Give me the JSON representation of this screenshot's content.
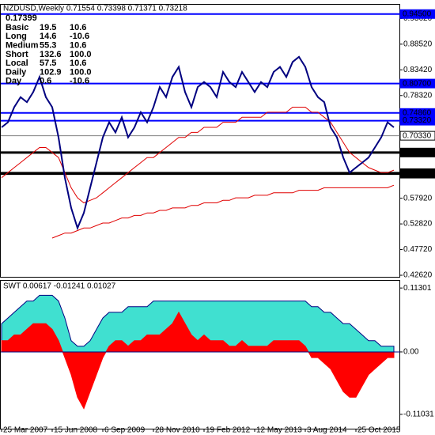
{
  "chart_data": [
    {
      "type": "line",
      "title": "NZDUSD,Weekly  0.71554 0.73398 0.71371 0.73218",
      "info": {
        "value": "0.17399",
        "rows": [
          [
            "Basic",
            "19.5",
            "10.6"
          ],
          [
            "Long",
            "14.6",
            "-10.6"
          ],
          [
            "Medium",
            "55.3",
            "10.6"
          ],
          [
            "Short",
            "132.6",
            "100.0"
          ],
          [
            "Local",
            "57.5",
            "10.6"
          ],
          [
            "Daily",
            "102.9",
            "100.0"
          ],
          [
            "Day",
            "0.6",
            "-10.6"
          ]
        ]
      },
      "categories": [
        "25 Mar 2007",
        null,
        null,
        null,
        null,
        null,
        null,
        null,
        "15 Jun 2008",
        null,
        null,
        null,
        null,
        null,
        null,
        null,
        "6 Sep 2009",
        null,
        null,
        null,
        null,
        null,
        null,
        null,
        "28 Nov 2010",
        null,
        null,
        null,
        null,
        null,
        null,
        null,
        "19 Feb 2012",
        null,
        null,
        null,
        null,
        null,
        null,
        null,
        "12 May 2013",
        null,
        null,
        null,
        null,
        null,
        null,
        null,
        "3 Aug 2014",
        null,
        null,
        null,
        null,
        null,
        null,
        null,
        "25 Oct 2015",
        null,
        null,
        null,
        null,
        null,
        null
      ],
      "series": [
        {
          "color": "#000080",
          "values": [
            0.72,
            0.73,
            0.76,
            0.78,
            0.77,
            0.79,
            0.82,
            0.78,
            0.76,
            0.7,
            0.62,
            0.56,
            0.52,
            0.55,
            0.6,
            0.65,
            0.7,
            0.73,
            0.71,
            0.74,
            0.7,
            0.72,
            0.75,
            0.73,
            0.76,
            0.8,
            0.78,
            0.82,
            0.84,
            0.79,
            0.76,
            0.8,
            0.81,
            0.8,
            0.78,
            0.83,
            0.81,
            0.8,
            0.83,
            0.81,
            0.79,
            0.81,
            0.8,
            0.83,
            0.84,
            0.82,
            0.85,
            0.86,
            0.84,
            0.8,
            0.78,
            0.77,
            0.72,
            0.7,
            0.66,
            0.63,
            0.64,
            0.65,
            0.66,
            0.68,
            0.7,
            0.73,
            0.72
          ]
        },
        {
          "color": "#e00000",
          "values": [
            0.62,
            0.63,
            0.64,
            0.65,
            0.66,
            0.67,
            0.68,
            0.68,
            0.67,
            0.66,
            0.63,
            0.6,
            0.58,
            0.57,
            0.575,
            0.58,
            0.59,
            0.6,
            0.61,
            0.62,
            0.63,
            0.64,
            0.65,
            0.66,
            0.66,
            0.67,
            0.68,
            0.69,
            0.7,
            0.7,
            0.71,
            0.71,
            0.72,
            0.72,
            0.72,
            0.73,
            0.73,
            0.73,
            0.74,
            0.74,
            0.74,
            0.74,
            0.75,
            0.75,
            0.75,
            0.75,
            0.76,
            0.76,
            0.76,
            0.75,
            0.75,
            0.74,
            0.73,
            0.71,
            0.69,
            0.67,
            0.66,
            0.65,
            0.64,
            0.635,
            0.63,
            0.63,
            0.635
          ]
        },
        {
          "color": "#e00000",
          "values": [
            null,
            null,
            null,
            null,
            null,
            null,
            null,
            null,
            0.5,
            0.505,
            0.51,
            0.51,
            0.515,
            0.52,
            0.52,
            0.525,
            0.53,
            0.53,
            0.535,
            0.54,
            0.54,
            0.545,
            0.545,
            0.55,
            0.55,
            0.555,
            0.555,
            0.56,
            0.56,
            0.56,
            0.565,
            0.565,
            0.57,
            0.57,
            0.57,
            0.575,
            0.575,
            0.58,
            0.58,
            0.58,
            0.585,
            0.585,
            0.585,
            0.59,
            0.59,
            0.59,
            0.59,
            0.595,
            0.595,
            0.595,
            0.595,
            0.6,
            0.6,
            0.6,
            0.6,
            0.6,
            0.6,
            0.6,
            0.6,
            0.6,
            0.6,
            0.6,
            0.605
          ]
        }
      ],
      "ylim": [
        0.4231,
        0.9635
      ],
      "yticks": [
        {
          "value": 0.9362,
          "label": "0.93620"
        },
        {
          "value": 0.8852,
          "label": "0.88520"
        },
        {
          "value": 0.8342,
          "label": "0.83420"
        },
        {
          "value": 0.7832,
          "label": "0.78320"
        },
        {
          "value": 0.5792,
          "label": "0.57920"
        },
        {
          "value": 0.5282,
          "label": "0.52820"
        },
        {
          "value": 0.4772,
          "label": "0.47720"
        },
        {
          "value": 0.4262,
          "label": "0.42620"
        }
      ],
      "levels": [
        {
          "value": 0.945,
          "label": "0.94500",
          "color": "#0000ff"
        },
        {
          "value": 0.807,
          "label": "0.80700",
          "color": "#0000ff"
        },
        {
          "value": 0.7486,
          "label": "0.74860",
          "color": "#0000ff"
        },
        {
          "value": 0.7332,
          "label": "0.73320",
          "color": "#0000ff"
        },
        {
          "value": 0.7033,
          "label": "0.70330",
          "color": "#808080"
        },
        {
          "value": 0.67,
          "label": "0.67000",
          "color": "#000000"
        },
        {
          "value": 0.629,
          "label": "0.62900",
          "color": "#000000"
        },
        {
          "value": 0.628,
          "label": "0.62800",
          "color": "#000000"
        }
      ]
    },
    {
      "type": "area",
      "title": "SWT 0.00617 -0.01241 0.01027",
      "series": [
        {
          "color": "#40e0d0",
          "values": [
            0.05,
            0.06,
            0.07,
            0.08,
            0.09,
            0.09,
            0.1,
            0.1,
            0.1,
            0.09,
            0.06,
            0.02,
            0.01,
            0.01,
            0.02,
            0.04,
            0.06,
            0.07,
            0.07,
            0.07,
            0.08,
            0.08,
            0.08,
            0.08,
            0.09,
            0.09,
            0.09,
            0.09,
            0.09,
            0.09,
            0.09,
            0.09,
            0.09,
            0.09,
            0.09,
            0.09,
            0.09,
            0.09,
            0.09,
            0.09,
            0.09,
            0.09,
            0.09,
            0.09,
            0.09,
            0.09,
            0.09,
            0.09,
            0.09,
            0.08,
            0.08,
            0.07,
            0.07,
            0.06,
            0.05,
            0.05,
            0.04,
            0.03,
            0.02,
            0.02,
            0.01,
            0.01,
            0.01
          ]
        },
        {
          "color": "#ff0000",
          "values": [
            0.02,
            0.02,
            0.03,
            0.03,
            0.04,
            0.05,
            0.05,
            0.05,
            0.04,
            0.02,
            -0.01,
            -0.04,
            -0.08,
            -0.1,
            -0.07,
            -0.04,
            -0.01,
            0.01,
            0.02,
            0.02,
            0.01,
            0.02,
            0.02,
            0.03,
            0.03,
            0.03,
            0.04,
            0.05,
            0.07,
            0.05,
            0.03,
            0.02,
            0.03,
            0.02,
            0.02,
            0.02,
            0.01,
            0.01,
            0.02,
            0.01,
            0.01,
            0.01,
            0.01,
            0.02,
            0.02,
            0.02,
            0.02,
            0.02,
            0.01,
            -0.01,
            -0.01,
            -0.02,
            -0.03,
            -0.05,
            -0.07,
            -0.08,
            -0.08,
            -0.06,
            -0.04,
            -0.03,
            -0.02,
            -0.01,
            -0.01
          ]
        }
      ],
      "ylim": [
        -0.1357,
        0.1258
      ],
      "yticks": [
        {
          "value": 0.11301,
          "label": "0.11301"
        },
        {
          "value": 0,
          "label": "0.00"
        },
        {
          "value": -0.11031,
          "label": "-0.11031"
        }
      ]
    }
  ]
}
